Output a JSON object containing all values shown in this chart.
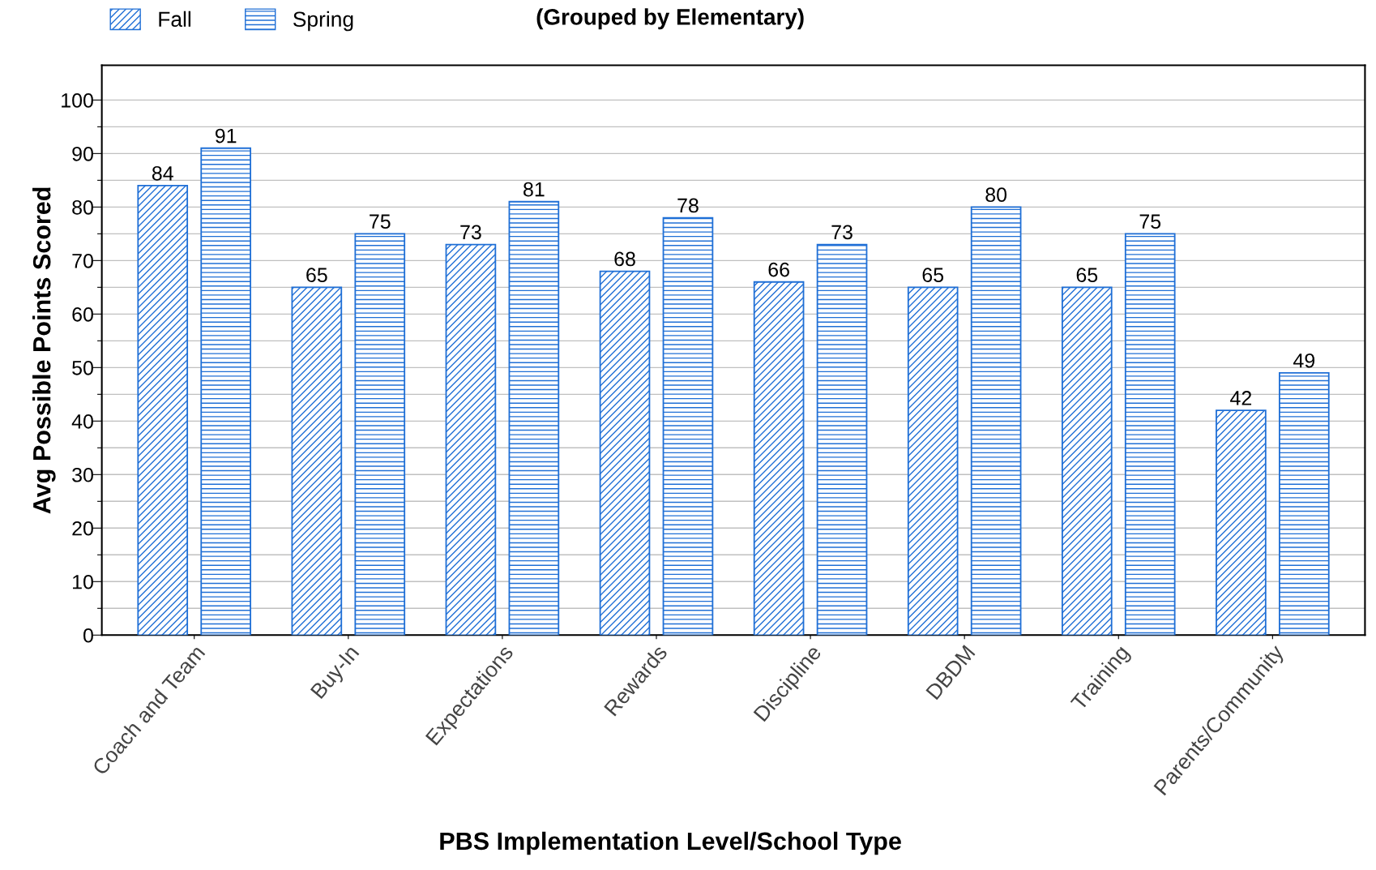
{
  "chart_data": {
    "type": "bar",
    "title": "(Grouped by Elementary)",
    "xlabel": "PBS Implementation Level/School Type",
    "ylabel": "Avg Possible Points Scored",
    "categories": [
      "Coach and Team",
      "Buy-In",
      "Expectations",
      "Rewards",
      "Discipline",
      "DBDM",
      "Training",
      "Parents/Community"
    ],
    "series": [
      {
        "name": "Fall",
        "color": "#1f6fd6",
        "values": [
          84,
          65,
          73,
          68,
          66,
          65,
          65,
          42
        ]
      },
      {
        "name": "Spring",
        "color": "#1f6fd6",
        "values": [
          91,
          75,
          81,
          78,
          73,
          80,
          75,
          49
        ]
      }
    ],
    "ylim": [
      0,
      106.5
    ],
    "yticks": [
      0,
      {
        "value": 5,
        "label": null
      },
      10,
      {
        "value": 15,
        "label": null
      },
      20,
      {
        "value": 25,
        "label": null
      },
      30,
      {
        "value": 35,
        "label": null
      },
      40,
      {
        "value": 45,
        "label": null
      },
      50,
      {
        "value": 55,
        "label": null
      },
      60,
      {
        "value": 65,
        "label": null
      },
      70,
      {
        "value": 75,
        "label": null
      },
      80,
      {
        "value": 85,
        "label": null
      },
      90,
      {
        "value": 95,
        "label": null
      },
      100
    ],
    "grid": "y",
    "legend": "top left",
    "data_labels": true
  }
}
